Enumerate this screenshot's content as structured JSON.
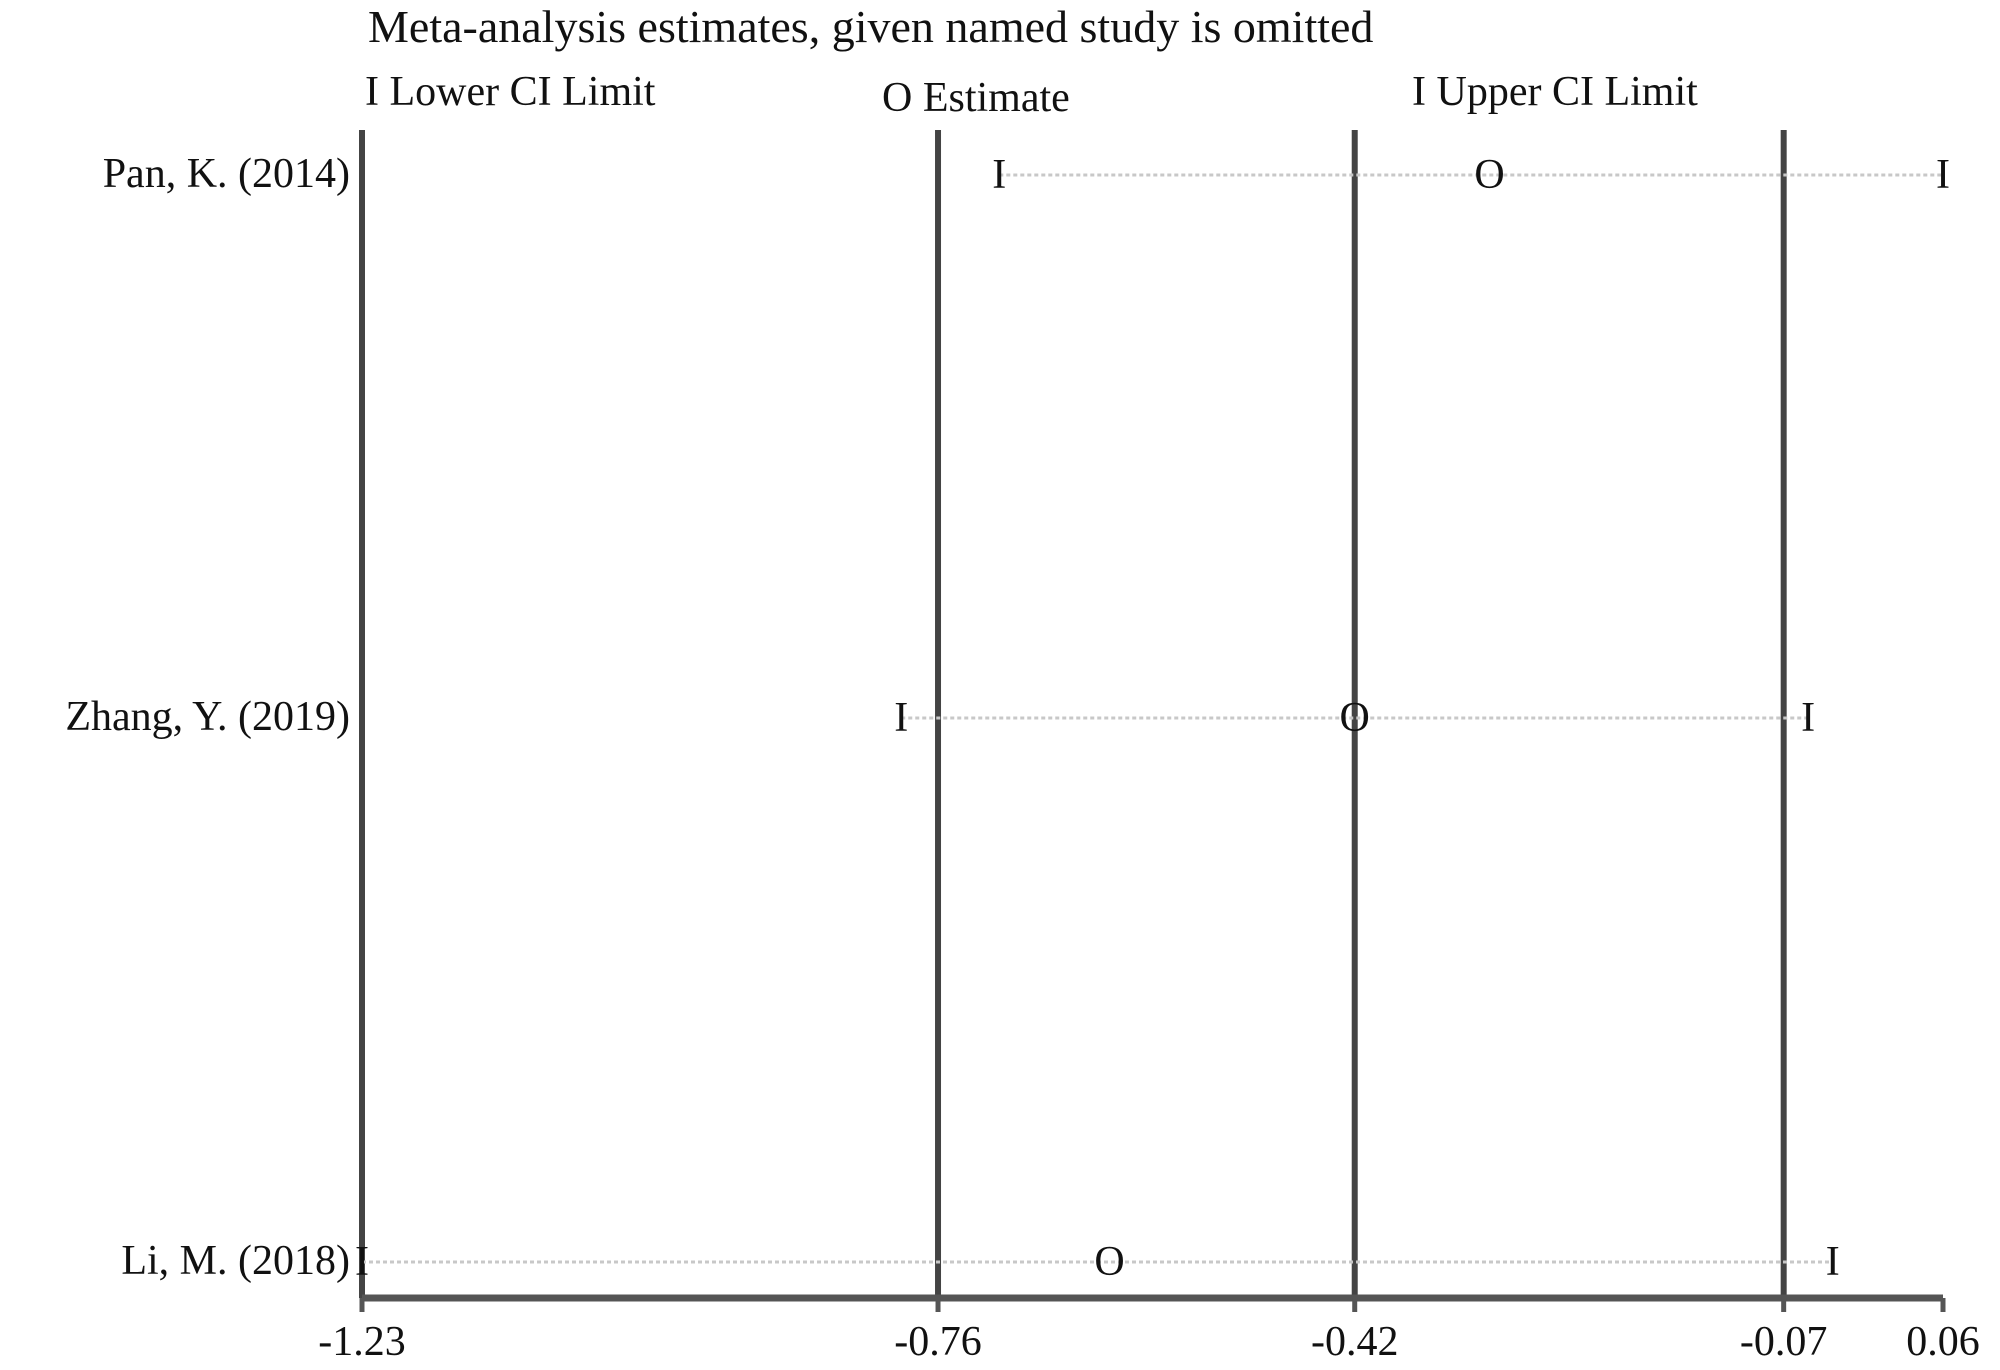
{
  "chart_data": {
    "type": "scatter",
    "title": "Meta-analysis estimates, given named study is omitted",
    "legend": [
      {
        "symbol": "I",
        "label": "Lower CI Limit"
      },
      {
        "symbol": "O",
        "label": "Estimate"
      },
      {
        "symbol": "I",
        "label": "Upper CI Limit"
      }
    ],
    "legend_placement": "top",
    "xlim": [
      -1.23,
      0.06
    ],
    "x_ticks": [
      -1.23,
      -0.76,
      -0.42,
      -0.07,
      0.06
    ],
    "x_tick_labels": [
      "-1.23",
      "-0.76",
      "-0.42",
      "-0.07",
      "0.06"
    ],
    "reference_lines": [
      -1.23,
      -0.76,
      -0.42,
      -0.07
    ],
    "studies": [
      {
        "label": "Pan, K. (2014)",
        "lower": -0.71,
        "estimate": -0.31,
        "upper": 0.06
      },
      {
        "label": "Zhang, Y. (2019)",
        "lower": -0.79,
        "estimate": -0.42,
        "upper": -0.05
      },
      {
        "label": "Li, M. (2018)",
        "lower": -1.23,
        "estimate": -0.62,
        "upper": -0.03
      }
    ]
  }
}
